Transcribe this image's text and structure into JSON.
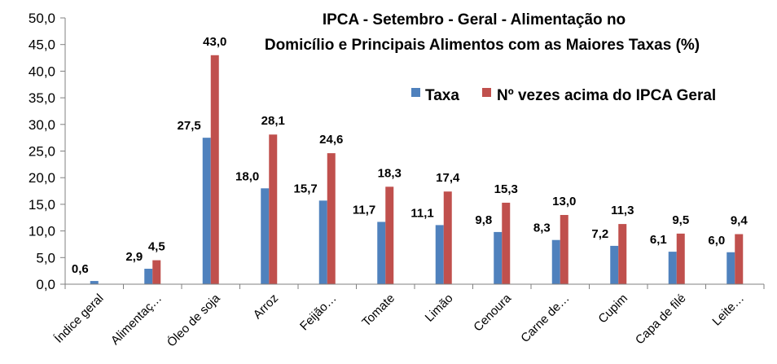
{
  "chart_data": {
    "type": "bar",
    "title_line1": "IPCA - Setembro - Geral - Alimentação no",
    "title_line2": "Domicílio e Principais Alimentos com as Maiores Taxas (%)",
    "xlabel": "",
    "ylabel": "",
    "ylim": [
      0,
      50
    ],
    "yticks": [
      "0,0",
      "5,0",
      "10,0",
      "15,0",
      "20,0",
      "25,0",
      "30,0",
      "35,0",
      "40,0",
      "45,0",
      "50,0"
    ],
    "categories": [
      "Índice geral",
      "Alimentaç…",
      "Óleo de soja",
      "Arroz",
      "Feijão…",
      "Tomate",
      "Limão",
      "Cenoura",
      "Carne de…",
      "Cupim",
      "Capa de filé",
      "Leite…"
    ],
    "series": [
      {
        "name": "Taxa",
        "color": "#4F81BD",
        "values": [
          0.6,
          2.9,
          27.5,
          18.0,
          15.7,
          11.7,
          11.1,
          9.8,
          8.3,
          7.2,
          6.1,
          6.0
        ],
        "labels": [
          "0,6",
          "2,9",
          "27,5",
          "18,0",
          "15,7",
          "11,7",
          "11,1",
          "9,8",
          "8,3",
          "7,2",
          "6,1",
          "6,0"
        ]
      },
      {
        "name": "Nº vezes acima do IPCA Geral",
        "color": "#C0504D",
        "values": [
          null,
          4.5,
          43.0,
          28.1,
          24.6,
          18.3,
          17.4,
          15.3,
          13.0,
          11.3,
          9.5,
          9.4
        ],
        "labels": [
          null,
          "4,5",
          "43,0",
          "28,1",
          "24,6",
          "18,3",
          "17,4",
          "15,3",
          "13,0",
          "11,3",
          "9,5",
          "9,4"
        ]
      }
    ],
    "grid": false,
    "legend": "top-right"
  }
}
